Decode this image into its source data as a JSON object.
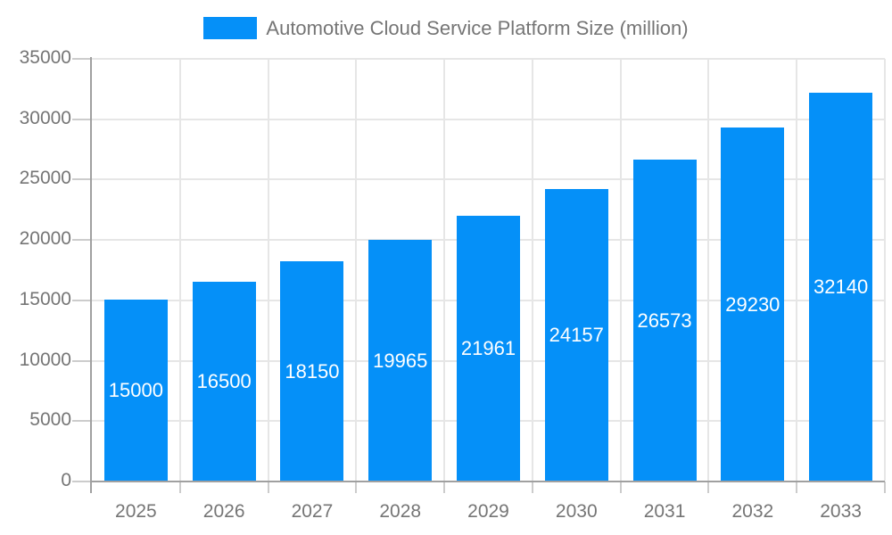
{
  "legend": {
    "label": "Automotive Cloud Service Platform Size (million)"
  },
  "chart_data": {
    "type": "bar",
    "title": "Automotive Cloud Service Platform Size (million)",
    "legend_position": "top",
    "categories": [
      "2025",
      "2026",
      "2027",
      "2028",
      "2029",
      "2030",
      "2031",
      "2032",
      "2033"
    ],
    "values": [
      15000,
      16500,
      18150,
      19965,
      21961,
      24157,
      26573,
      29230,
      32140
    ],
    "value_labels": [
      "15000",
      "16500",
      "18150",
      "19965",
      "21961",
      "24157",
      "26573",
      "29230",
      "32140"
    ],
    "xlabel": "",
    "ylabel": "",
    "ylim": [
      0,
      35000
    ],
    "yticks": [
      0,
      5000,
      10000,
      15000,
      20000,
      25000,
      30000,
      35000
    ],
    "ytick_labels": [
      "0",
      "5000",
      "10000",
      "15000",
      "20000",
      "25000",
      "30000",
      "35000"
    ],
    "grid": true,
    "colors": {
      "bar": "#0590f8",
      "value_label": "#ffffff",
      "axis_line": "#a0a0a0",
      "tick": "#cccccc",
      "gridline": "#e6e6e6",
      "text": "#757575"
    }
  }
}
